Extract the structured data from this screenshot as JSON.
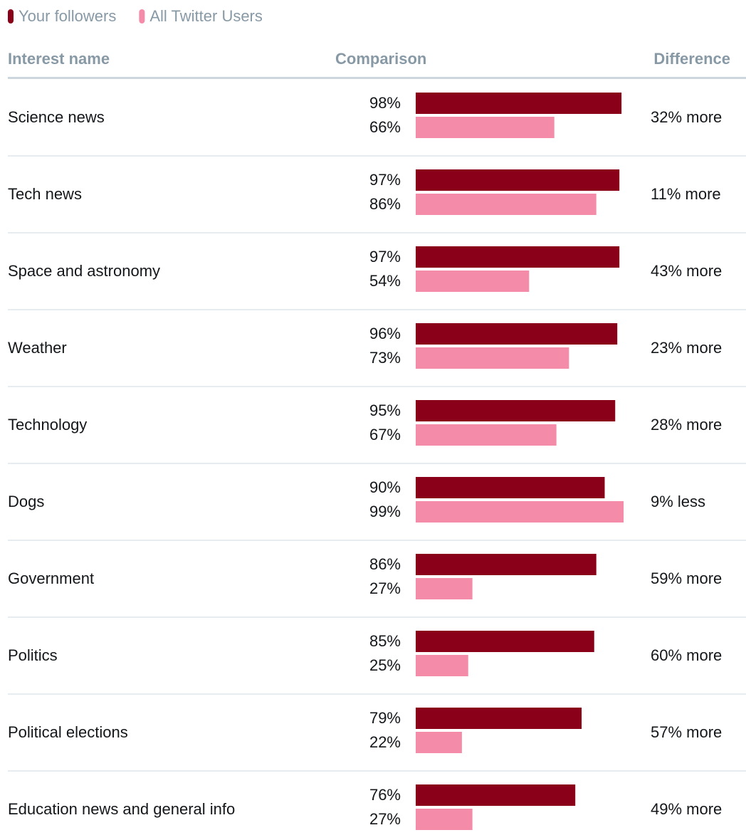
{
  "chart_data": {
    "type": "bar",
    "orientation": "horizontal",
    "columns": [
      "Interest name",
      "Comparison",
      "Difference"
    ],
    "categories": [
      "Science news",
      "Tech news",
      "Space and astronomy",
      "Weather",
      "Technology",
      "Dogs",
      "Government",
      "Politics",
      "Political elections",
      "Education news and general info"
    ],
    "series": [
      {
        "name": "Your followers",
        "color": "#8b0019",
        "values": [
          98,
          97,
          97,
          96,
          95,
          90,
          86,
          85,
          79,
          76
        ],
        "value_labels": [
          "98%",
          "97%",
          "97%",
          "96%",
          "95%",
          "90%",
          "86%",
          "85%",
          "79%",
          "76%"
        ]
      },
      {
        "name": "All Twitter Users",
        "color": "#f48ca9",
        "values": [
          66,
          86,
          54,
          73,
          67,
          99,
          27,
          25,
          22,
          27
        ],
        "value_labels": [
          "66%",
          "86%",
          "54%",
          "73%",
          "67%",
          "99%",
          "27%",
          "25%",
          "22%",
          "27%"
        ]
      }
    ],
    "differences": [
      "32% more",
      "11% more",
      "43% more",
      "23% more",
      "28% more",
      "9% less",
      "59% more",
      "60% more",
      "57% more",
      "49% more"
    ],
    "xlim": [
      0,
      100
    ]
  }
}
